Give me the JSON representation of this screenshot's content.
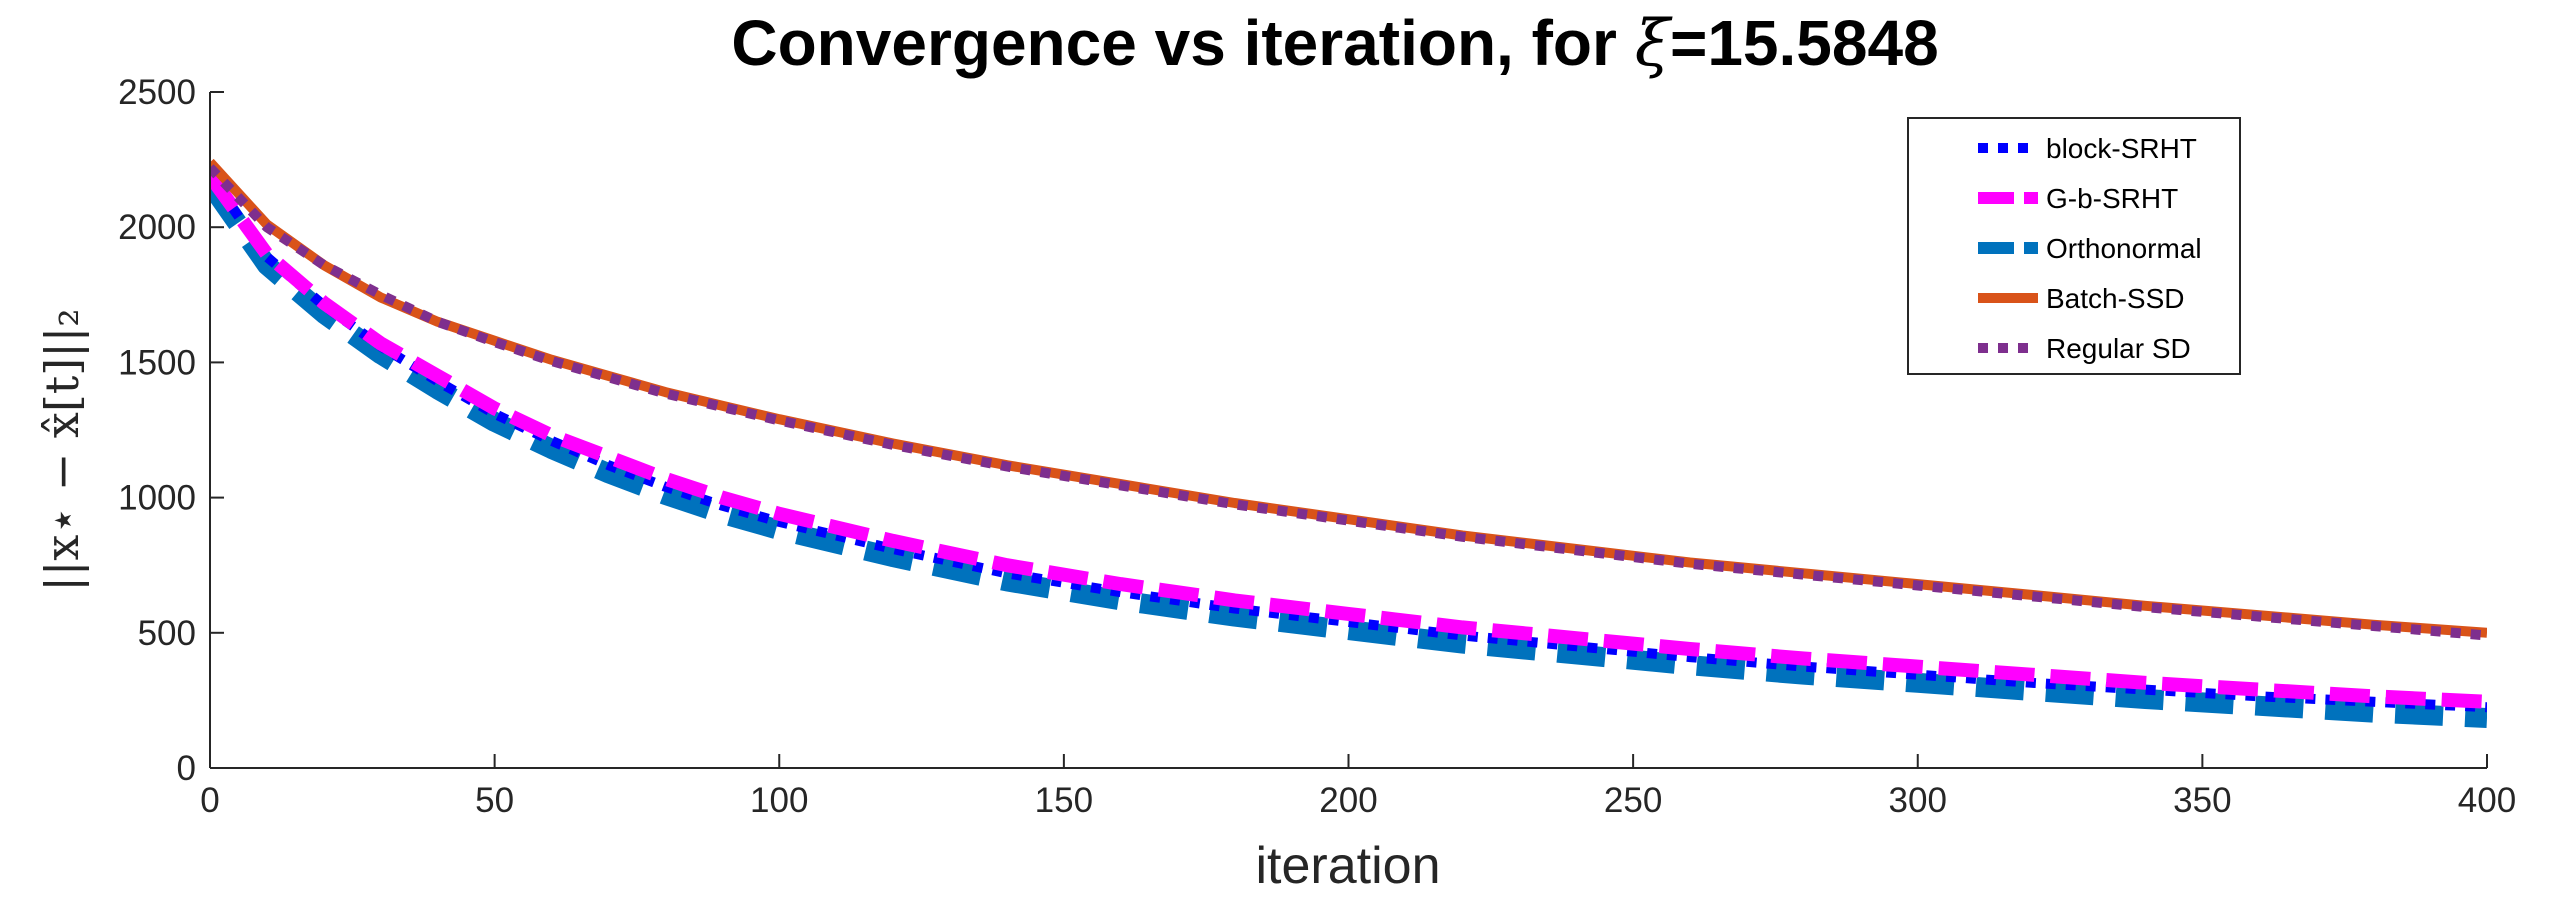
{
  "chart_data": {
    "type": "line",
    "title": "Convergence vs iteration, for ξ=15.5848",
    "title_parts": {
      "prefix": "Convergence vs iteration, for ",
      "symbol": "ξ",
      "suffix": "=15.5848"
    },
    "xlabel": "iteration",
    "ylabel": "||x⋆ − x̂[t]||₂",
    "xlim": [
      0,
      400
    ],
    "ylim": [
      0,
      2500
    ],
    "xticks": [
      0,
      50,
      100,
      150,
      200,
      250,
      300,
      350,
      400
    ],
    "yticks": [
      0,
      500,
      1000,
      1500,
      2000,
      2500
    ],
    "grid": false,
    "legend_position": "top-right",
    "series": [
      {
        "name": "block-SRHT",
        "color": "#0000ff",
        "style": "dotted",
        "x": [
          0,
          10,
          20,
          30,
          40,
          50,
          60,
          70,
          80,
          90,
          100,
          120,
          140,
          160,
          180,
          200,
          220,
          240,
          260,
          280,
          300,
          320,
          340,
          360,
          380,
          400
        ],
        "y": [
          2190,
          1890,
          1710,
          1560,
          1430,
          1310,
          1210,
          1120,
          1040,
          970,
          910,
          810,
          720,
          650,
          590,
          540,
          490,
          450,
          410,
          375,
          345,
          315,
          290,
          265,
          245,
          225
        ]
      },
      {
        "name": "G-b-SRHT",
        "color": "#ff00ff",
        "style": "dashed",
        "x": [
          0,
          10,
          20,
          30,
          40,
          50,
          60,
          70,
          80,
          90,
          100,
          120,
          140,
          160,
          180,
          200,
          220,
          240,
          260,
          280,
          300,
          320,
          340,
          360,
          380,
          400
        ],
        "y": [
          2190,
          1900,
          1720,
          1570,
          1450,
          1330,
          1230,
          1150,
          1070,
          1000,
          940,
          840,
          750,
          680,
          620,
          570,
          520,
          480,
          440,
          405,
          375,
          345,
          315,
          290,
          265,
          245
        ]
      },
      {
        "name": "Orthonormal",
        "color": "#0072bd",
        "style": "dashed-wide",
        "x": [
          0,
          10,
          20,
          30,
          40,
          50,
          60,
          70,
          80,
          90,
          100,
          120,
          140,
          160,
          180,
          200,
          220,
          240,
          260,
          280,
          300,
          320,
          340,
          360,
          380,
          400
        ],
        "y": [
          2160,
          1860,
          1680,
          1530,
          1400,
          1280,
          1180,
          1090,
          1010,
          940,
          880,
          780,
          690,
          620,
          560,
          510,
          460,
          420,
          380,
          345,
          315,
          285,
          255,
          230,
          205,
          185
        ]
      },
      {
        "name": "Batch-SSD",
        "color": "#d95319",
        "style": "solid",
        "x": [
          0,
          10,
          20,
          30,
          40,
          50,
          60,
          70,
          80,
          90,
          100,
          120,
          140,
          160,
          180,
          200,
          220,
          240,
          260,
          280,
          300,
          320,
          340,
          360,
          380,
          400
        ],
        "y": [
          2240,
          2010,
          1860,
          1740,
          1650,
          1580,
          1510,
          1450,
          1390,
          1340,
          1290,
          1200,
          1120,
          1050,
          980,
          920,
          860,
          810,
          760,
          720,
          680,
          640,
          600,
          565,
          530,
          500
        ]
      },
      {
        "name": "Regular SD",
        "color": "#7e2f8e",
        "style": "dotted",
        "x": [
          0,
          10,
          20,
          30,
          40,
          50,
          60,
          70,
          80,
          90,
          100,
          120,
          140,
          160,
          180,
          200,
          220,
          240,
          260,
          280,
          300,
          320,
          340,
          360,
          380,
          400
        ],
        "y": [
          2220,
          2000,
          1860,
          1750,
          1650,
          1575,
          1505,
          1445,
          1385,
          1335,
          1285,
          1195,
          1115,
          1045,
          975,
          915,
          855,
          805,
          755,
          715,
          675,
          635,
          595,
          560,
          525,
          490
        ]
      }
    ]
  }
}
